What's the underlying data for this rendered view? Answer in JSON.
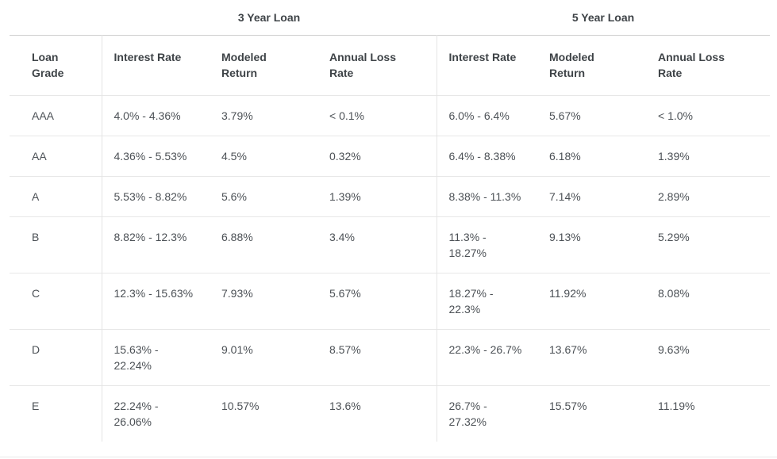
{
  "colors": {
    "background": "#ffffff",
    "header_text": "#3e4347",
    "body_text": "#4c5156",
    "table_top_border": "#cfcfcf",
    "row_line": "#e7e7e7",
    "column_line": "#e4e4e4"
  },
  "chart_data": {
    "type": "table",
    "group_headers": [
      "3 Year Loan",
      "5 Year Loan"
    ],
    "grade_header": "Loan Grade",
    "column_headers": [
      "Interest Rate",
      "Modeled Return",
      "Annual Loss Rate"
    ],
    "rows": [
      {
        "grade": "AAA",
        "y3": {
          "interest_rate": "4.0% - 4.36%",
          "modeled_return": "3.79%",
          "annual_loss_rate": "< 0.1%"
        },
        "y5": {
          "interest_rate": "6.0% - 6.4%",
          "modeled_return": "5.67%",
          "annual_loss_rate": "< 1.0%"
        }
      },
      {
        "grade": "AA",
        "y3": {
          "interest_rate": "4.36% - 5.53%",
          "modeled_return": "4.5%",
          "annual_loss_rate": "0.32%"
        },
        "y5": {
          "interest_rate": "6.4% - 8.38%",
          "modeled_return": "6.18%",
          "annual_loss_rate": "1.39%"
        }
      },
      {
        "grade": "A",
        "y3": {
          "interest_rate": "5.53% - 8.82%",
          "modeled_return": "5.6%",
          "annual_loss_rate": "1.39%"
        },
        "y5": {
          "interest_rate": "8.38% - 11.3%",
          "modeled_return": "7.14%",
          "annual_loss_rate": "2.89%"
        }
      },
      {
        "grade": "B",
        "y3": {
          "interest_rate": "8.82% - 12.3%",
          "modeled_return": "6.88%",
          "annual_loss_rate": "3.4%"
        },
        "y5": {
          "interest_rate": "11.3% - 18.27%",
          "modeled_return": "9.13%",
          "annual_loss_rate": "5.29%"
        }
      },
      {
        "grade": "C",
        "y3": {
          "interest_rate": "12.3% - 15.63%",
          "modeled_return": "7.93%",
          "annual_loss_rate": "5.67%"
        },
        "y5": {
          "interest_rate": "18.27% - 22.3%",
          "modeled_return": "11.92%",
          "annual_loss_rate": "8.08%"
        }
      },
      {
        "grade": "D",
        "y3": {
          "interest_rate": "15.63% - 22.24%",
          "modeled_return": "9.01%",
          "annual_loss_rate": "8.57%"
        },
        "y5": {
          "interest_rate": "22.3% - 26.7%",
          "modeled_return": "13.67%",
          "annual_loss_rate": "9.63%"
        }
      },
      {
        "grade": "E",
        "y3": {
          "interest_rate": "22.24% - 26.06%",
          "modeled_return": "10.57%",
          "annual_loss_rate": "13.6%"
        },
        "y5": {
          "interest_rate": "26.7% - 27.32%",
          "modeled_return": "15.57%",
          "annual_loss_rate": "11.19%"
        }
      }
    ]
  }
}
